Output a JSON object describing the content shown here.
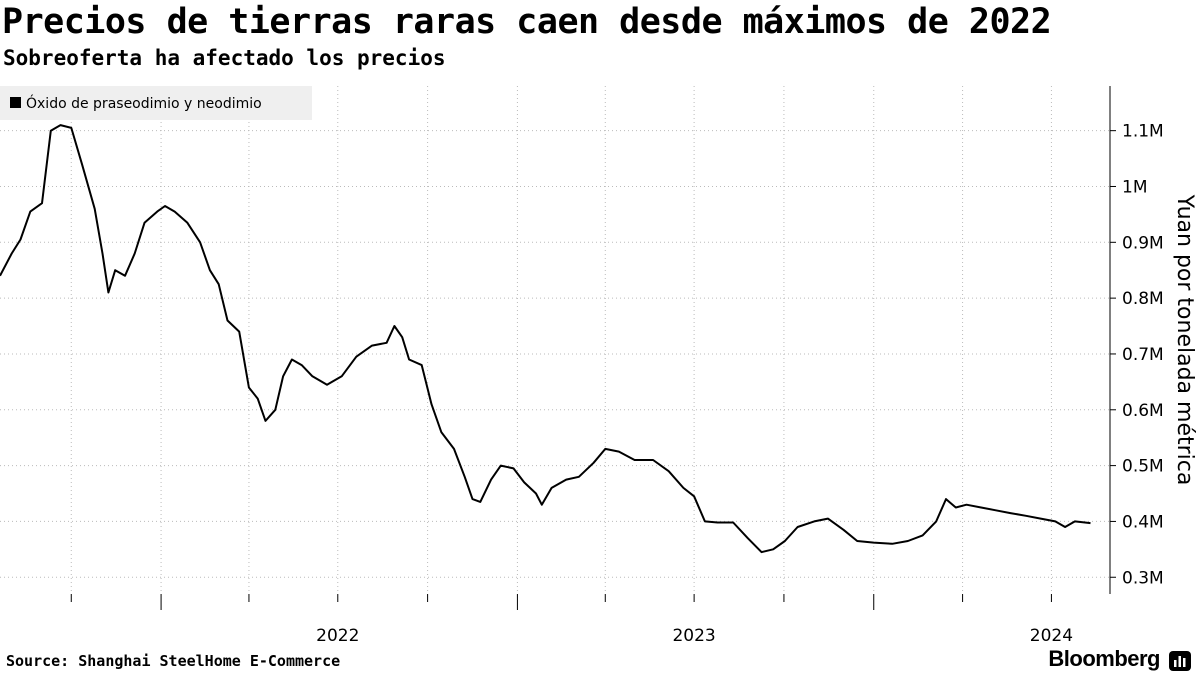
{
  "header": {
    "title": "Precios de tierras raras caen desde máximos de 2022",
    "subtitle": "Sobreoferta ha afectado los precios"
  },
  "footer": {
    "source": "Source: Shanghai SteelHome E-Commerce",
    "brand": "Bloomberg",
    "brand_icon": "bloomberg-terminal-icon"
  },
  "colors": {
    "line": "#000000",
    "grid": "#bbbbbb",
    "legend_bg": "#efefef"
  },
  "chart_data": {
    "type": "line",
    "title": "Precios de tierras raras caen desde máximos de 2022",
    "subtitle": "Sobreoferta ha afectado los precios",
    "ylabel": "Yuan por tonelada métrica",
    "y_axis_position": "right",
    "ylim": [
      270000,
      1180000
    ],
    "y_ticks": [
      300000,
      400000,
      500000,
      600000,
      700000,
      800000,
      900000,
      1000000,
      1100000
    ],
    "y_tick_labels": [
      "0.3M",
      "0.4M",
      "0.5M",
      "0.6M",
      "0.7M",
      "0.8M",
      "0.9M",
      "1M",
      "1.1M"
    ],
    "xlim": [
      "2021-07-20",
      "2024-08-30"
    ],
    "x_tick_labels": [
      {
        "label": "2022",
        "date": "2022-01-01"
      },
      {
        "label": "2023",
        "date": "2023-01-01"
      },
      {
        "label": "2024",
        "date": "2024-01-01"
      }
    ],
    "grid": true,
    "legend_position": "top-left",
    "series": [
      {
        "name": "Óxido de praseodimio y neodimio",
        "points": [
          [
            "2021-07-20",
            840000
          ],
          [
            "2021-08-01",
            880000
          ],
          [
            "2021-08-10",
            905000
          ],
          [
            "2021-08-20",
            955000
          ],
          [
            "2021-09-01",
            970000
          ],
          [
            "2021-09-10",
            1100000
          ],
          [
            "2021-09-20",
            1110000
          ],
          [
            "2021-10-01",
            1105000
          ],
          [
            "2021-10-12",
            1040000
          ],
          [
            "2021-10-25",
            960000
          ],
          [
            "2021-11-02",
            880000
          ],
          [
            "2021-11-08",
            810000
          ],
          [
            "2021-11-15",
            850000
          ],
          [
            "2021-11-25",
            840000
          ],
          [
            "2021-12-05",
            880000
          ],
          [
            "2021-12-15",
            935000
          ],
          [
            "2021-12-28",
            955000
          ],
          [
            "2022-01-05",
            965000
          ],
          [
            "2022-01-15",
            955000
          ],
          [
            "2022-01-28",
            935000
          ],
          [
            "2022-02-10",
            900000
          ],
          [
            "2022-02-20",
            850000
          ],
          [
            "2022-03-01",
            825000
          ],
          [
            "2022-03-10",
            760000
          ],
          [
            "2022-03-22",
            740000
          ],
          [
            "2022-04-01",
            640000
          ],
          [
            "2022-04-10",
            620000
          ],
          [
            "2022-04-18",
            580000
          ],
          [
            "2022-04-28",
            600000
          ],
          [
            "2022-05-06",
            660000
          ],
          [
            "2022-05-15",
            690000
          ],
          [
            "2022-05-25",
            680000
          ],
          [
            "2022-06-05",
            660000
          ],
          [
            "2022-06-20",
            645000
          ],
          [
            "2022-07-05",
            660000
          ],
          [
            "2022-07-20",
            695000
          ],
          [
            "2022-08-05",
            715000
          ],
          [
            "2022-08-20",
            720000
          ],
          [
            "2022-08-28",
            750000
          ],
          [
            "2022-09-05",
            730000
          ],
          [
            "2022-09-12",
            690000
          ],
          [
            "2022-09-25",
            680000
          ],
          [
            "2022-10-05",
            610000
          ],
          [
            "2022-10-15",
            560000
          ],
          [
            "2022-10-28",
            530000
          ],
          [
            "2022-11-08",
            480000
          ],
          [
            "2022-11-16",
            440000
          ],
          [
            "2022-11-24",
            435000
          ],
          [
            "2022-12-05",
            475000
          ],
          [
            "2022-12-15",
            500000
          ],
          [
            "2022-12-28",
            495000
          ],
          [
            "2023-01-08",
            470000
          ],
          [
            "2023-01-20",
            450000
          ],
          [
            "2023-01-26",
            430000
          ],
          [
            "2023-02-05",
            460000
          ],
          [
            "2023-02-20",
            475000
          ],
          [
            "2023-03-05",
            480000
          ],
          [
            "2023-03-20",
            505000
          ],
          [
            "2023-04-01",
            530000
          ],
          [
            "2023-04-15",
            525000
          ],
          [
            "2023-05-01",
            510000
          ],
          [
            "2023-05-20",
            510000
          ],
          [
            "2023-06-05",
            490000
          ],
          [
            "2023-06-20",
            460000
          ],
          [
            "2023-07-01",
            445000
          ],
          [
            "2023-07-12",
            400000
          ],
          [
            "2023-07-25",
            398000
          ],
          [
            "2023-08-10",
            398000
          ],
          [
            "2023-08-25",
            370000
          ],
          [
            "2023-09-08",
            345000
          ],
          [
            "2023-09-20",
            350000
          ],
          [
            "2023-10-02",
            365000
          ],
          [
            "2023-10-15",
            390000
          ],
          [
            "2023-11-01",
            400000
          ],
          [
            "2023-11-15",
            405000
          ],
          [
            "2023-12-01",
            385000
          ],
          [
            "2023-12-15",
            365000
          ],
          [
            "2024-01-01",
            362000
          ],
          [
            "2024-01-20",
            360000
          ],
          [
            "2024-02-05",
            365000
          ],
          [
            "2024-02-20",
            375000
          ],
          [
            "2024-03-05",
            400000
          ],
          [
            "2024-03-15",
            440000
          ],
          [
            "2024-03-25",
            425000
          ],
          [
            "2024-04-05",
            430000
          ],
          [
            "2024-04-20",
            425000
          ],
          [
            "2024-05-05",
            420000
          ],
          [
            "2024-05-20",
            415000
          ],
          [
            "2024-06-05",
            410000
          ],
          [
            "2024-06-20",
            405000
          ],
          [
            "2024-07-05",
            400000
          ],
          [
            "2024-07-15",
            390000
          ],
          [
            "2024-07-25",
            400000
          ],
          [
            "2024-08-10",
            397000
          ]
        ]
      }
    ]
  }
}
